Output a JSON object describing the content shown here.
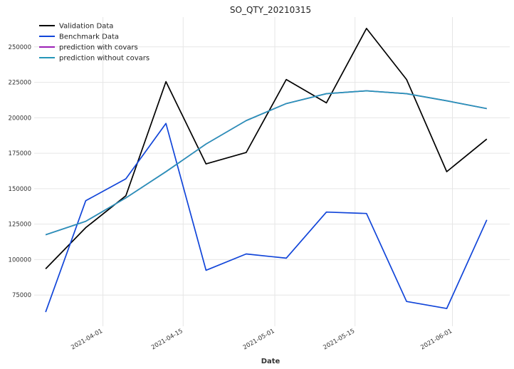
{
  "chart_data": {
    "type": "line",
    "title": "SO_QTY_20210315",
    "xlabel": "Date",
    "ylabel": "",
    "x": [
      "2021-03-22",
      "2021-03-29",
      "2021-04-05",
      "2021-04-12",
      "2021-04-19",
      "2021-04-26",
      "2021-05-03",
      "2021-05-10",
      "2021-05-17",
      "2021-05-24",
      "2021-05-31",
      "2021-06-07"
    ],
    "x_ticks": [
      "2021-04-01",
      "2021-04-15",
      "2021-05-01",
      "2021-05-15",
      "2021-06-01"
    ],
    "y_ticks": [
      75000,
      100000,
      125000,
      150000,
      175000,
      200000,
      225000,
      250000
    ],
    "y_tick_labels": [
      "75000",
      "100000",
      "125000",
      "150000",
      "175000",
      "200000",
      "225000",
      "250000"
    ],
    "ylim": [
      53000,
      271000
    ],
    "xlim": [
      "2021-03-20",
      "2021-06-11"
    ],
    "grid": true,
    "legend_position": "top-left",
    "series": [
      {
        "name": "Validation Data",
        "color": "#000000",
        "values": [
          93500,
          122500,
          145000,
          225500,
          167500,
          175500,
          227000,
          210500,
          263000,
          227000,
          162000,
          185000
        ]
      },
      {
        "name": "Benchmark Data",
        "color": "#1145d9",
        "values": [
          63000,
          141500,
          157000,
          196000,
          92500,
          104000,
          101000,
          133500,
          132500,
          70500,
          65500,
          128000
        ]
      },
      {
        "name": "prediction with covars",
        "color": "#9b1fb5",
        "values": [
          117500,
          127000,
          143500,
          162000,
          181500,
          198000,
          210000,
          217000,
          219000,
          217000,
          212000,
          206500
        ]
      },
      {
        "name": "prediction without covars",
        "color": "#2596b8",
        "values": [
          117500,
          127000,
          143500,
          162000,
          181500,
          198000,
          210000,
          217000,
          219000,
          217000,
          212000,
          206500
        ]
      }
    ]
  }
}
